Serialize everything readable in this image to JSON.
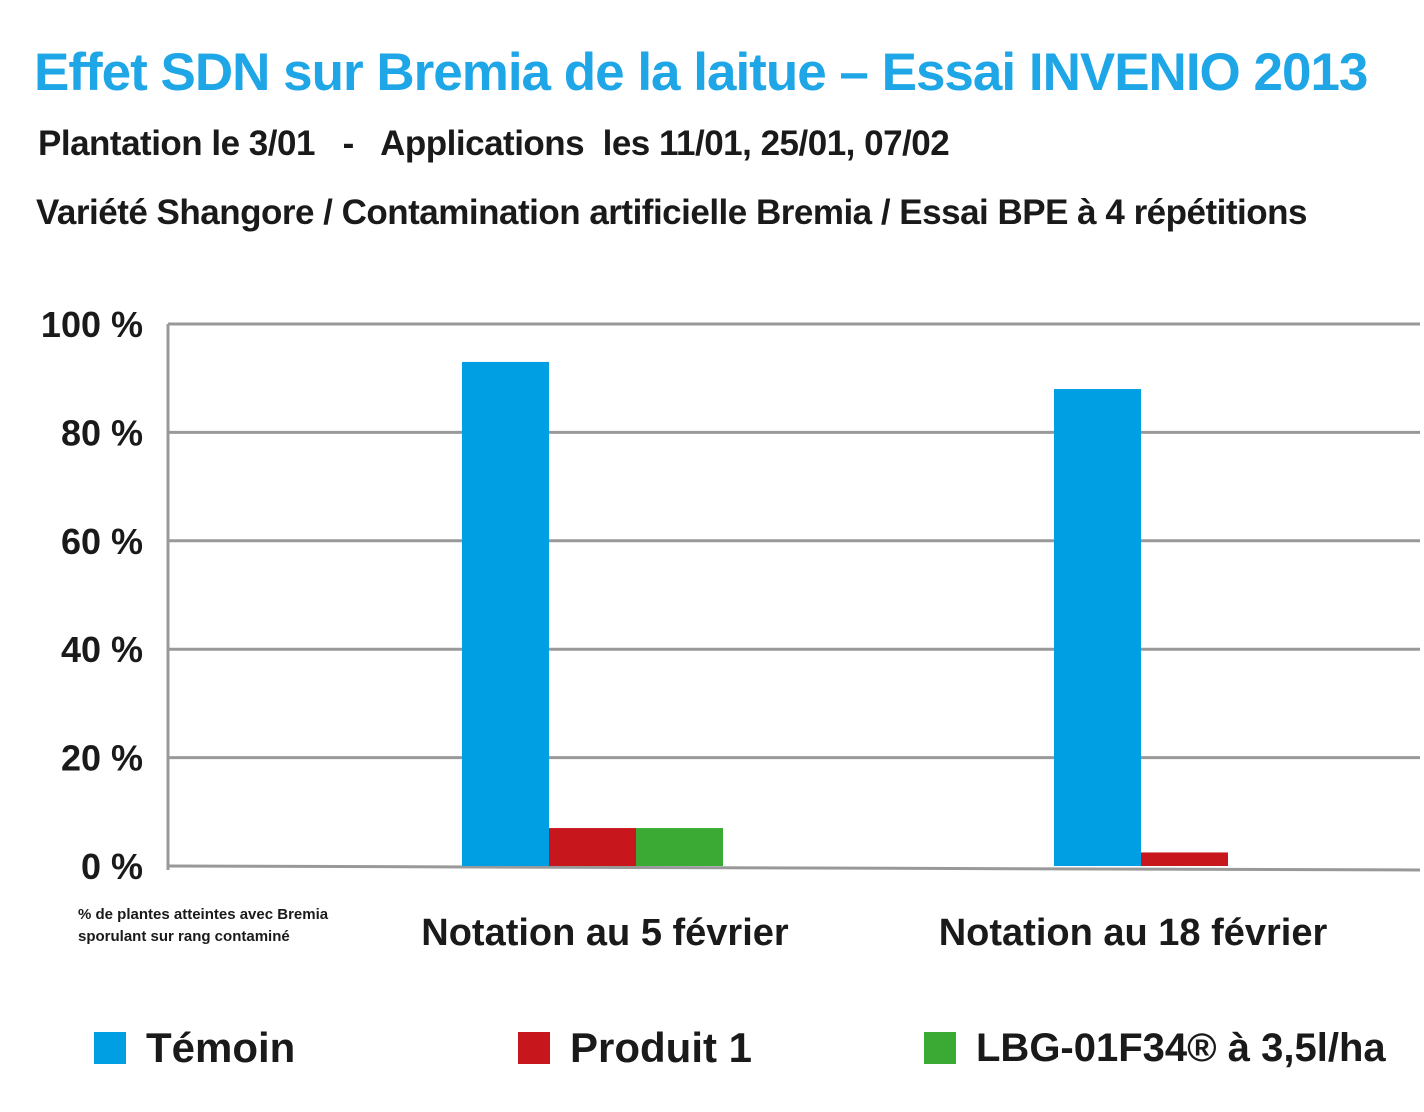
{
  "title": "Effet SDN sur Bremia de la laitue – Essai INVENIO 2013",
  "subtitle_line1": "Plantation le 3/01   -   Applications  les 11/01, 25/01, 07/02",
  "subtitle_line2": "Variété Shangore / Contamination artificielle Bremia / Essai BPE à 4 répétitions",
  "y_note_line1": "% de plantes atteintes avec Bremia",
  "y_note_line2": "sporulant sur rang contaminé",
  "colors": {
    "temoin": "#009fe3",
    "produit1": "#c8161d",
    "lbg": "#3aaa35",
    "grid": "#999999",
    "title": "#1ea6e6"
  },
  "chart_data": {
    "type": "bar",
    "title": "Effet SDN sur Bremia de la laitue – Essai INVENIO 2013",
    "ylabel": "% de plantes atteintes avec Bremia sporulant sur rang contaminé",
    "ylim": [
      0,
      100
    ],
    "yticks": [
      "0 %",
      "20 %",
      "40 %",
      "60 %",
      "80 %",
      "100 %"
    ],
    "ytick_values": [
      0,
      20,
      40,
      60,
      80,
      100
    ],
    "grid": true,
    "legend_position": "bottom",
    "categories": [
      "Notation au 5 février",
      "Notation au 18 février"
    ],
    "series": [
      {
        "name": "Témoin",
        "values": [
          93,
          88
        ]
      },
      {
        "name": "Produit  1",
        "values": [
          7,
          2.5
        ]
      },
      {
        "name": "LBG-01F34® à 3,5l/ha",
        "values": [
          7,
          0
        ]
      }
    ]
  }
}
